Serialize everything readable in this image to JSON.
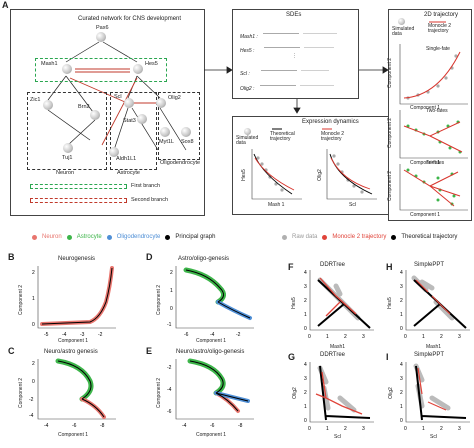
{
  "panelA": {
    "letter": "A",
    "network_title": "Curated network for CNS development",
    "genes": {
      "pax6": "Pax6",
      "mash1": "Mash1",
      "hes5": "Hes5",
      "zic1": "Zic1",
      "brn2": "Brn2",
      "scl": "Scl",
      "stat3": "Stat3",
      "olig2": "Olig2",
      "tuj1": "Tuj1",
      "aldh1l1": "Aldh1L1",
      "myt1l": "Myt1L",
      "sox8": "Sox8"
    },
    "cell_types": {
      "neuron": "Neuron",
      "astrocyte": "Astrocyte",
      "oligo": "Oligodendrocyte"
    },
    "legend": {
      "first_branch": "First branch",
      "second_branch": "Second branch"
    },
    "sdes": {
      "title": "SDEs",
      "eq1_lhs": "Mash1 :",
      "eq2_lhs": "Hes5 :",
      "eq3_lhs": "Scl :",
      "eq4_lhs": "Olig2 :"
    },
    "traj2d": {
      "title": "2D trajectory",
      "legend_sim": "Simulated data",
      "legend_mon": "Monocle 2 trajectory",
      "sub1": "Single-fate",
      "sub2": "Two-fates",
      "sub3": "Tri-fates",
      "xlab": "Component 1",
      "ylab": "Component 2"
    },
    "expr": {
      "title": "Expression dynamics",
      "legend_sim": "Simulated data",
      "legend_theo": "Theoretical trajectory",
      "legend_mon": "Monocle 2 trajectory",
      "x1": "Mash 1",
      "y1": "Hes5",
      "x2": "Scl",
      "y2": "Olig2"
    }
  },
  "legendBE": {
    "neuron": "Neuron",
    "astro": "Astrocyte",
    "oligo": "Oligodendrocyte",
    "pg": "Principal graph",
    "colors": {
      "neuron": "#e8756e",
      "astro": "#3db54a",
      "oligo": "#4f8fd6",
      "pg": "#000000"
    }
  },
  "legendFI": {
    "raw": "Raw data",
    "mon": "Monocle 2 trajectory",
    "theo": "Theoretical trajectory",
    "colors": {
      "raw": "#b0b0b0",
      "mon": "#e0443a",
      "theo": "#000000"
    }
  },
  "panels": {
    "B": {
      "letter": "B",
      "title": "Neurogenesis",
      "xlab": "Component 1",
      "ylab": "Component 2",
      "xticks": [
        "-5",
        "-4",
        "-3",
        "-2"
      ],
      "yticks": [
        "2",
        "1",
        "0"
      ]
    },
    "C": {
      "letter": "C",
      "title": "Neuro/astro genesis",
      "xlab": "Component 1",
      "ylab": "Component 2",
      "xticks": [
        "-4",
        "-6",
        "-8"
      ],
      "yticks": [
        "2",
        "0",
        "-2",
        "-4"
      ]
    },
    "D": {
      "letter": "D",
      "title": "Astro/oligo-genesis",
      "xlab": "Component 1",
      "ylab": "Component 2",
      "xticks": [
        "-6",
        "-4",
        "-2"
      ],
      "yticks": [
        "2",
        "1",
        "0",
        "-1"
      ]
    },
    "E": {
      "letter": "E",
      "title": "Neuro/astro/oligo-genesis",
      "xlab": "Component 1",
      "ylab": "Component 2",
      "xticks": [
        "-4",
        "-6",
        "-8"
      ],
      "yticks": [
        "-2",
        "-4",
        "-6"
      ]
    },
    "F": {
      "letter": "F",
      "title": "DDRTree",
      "xlab": "Mash1",
      "ylab": "Hes5",
      "xticks": [
        "0",
        "1",
        "2",
        "3"
      ],
      "yticks": [
        "4",
        "3",
        "2",
        "1",
        "0"
      ]
    },
    "G": {
      "letter": "G",
      "title": "DDRTree",
      "xlab": "Scl",
      "ylab": "Olig2",
      "xticks": [
        "0",
        "1",
        "2",
        "3"
      ],
      "yticks": [
        "4",
        "3",
        "2",
        "1",
        "0"
      ]
    },
    "H": {
      "letter": "H",
      "title": "SimplePPT",
      "xlab": "Mash1",
      "ylab": "Hes5",
      "xticks": [
        "0",
        "1",
        "2",
        "3"
      ],
      "yticks": [
        "4",
        "3",
        "2",
        "1",
        "0"
      ]
    },
    "I": {
      "letter": "I",
      "title": "SimplePPT",
      "xlab": "Scl",
      "ylab": "Olig2",
      "xticks": [
        "0",
        "1",
        "2",
        "3"
      ],
      "yticks": [
        "4",
        "3",
        "2",
        "1",
        "0"
      ]
    }
  }
}
